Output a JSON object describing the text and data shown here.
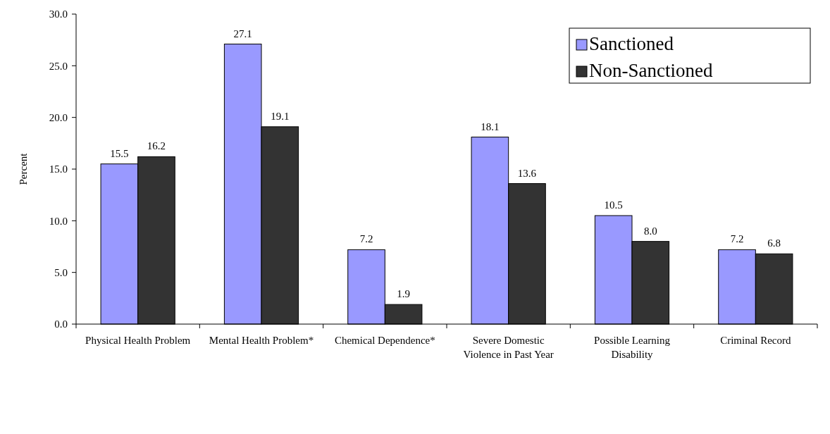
{
  "chart_data": {
    "type": "bar",
    "ylabel": "Percent",
    "categories": [
      "Physical Health Problem",
      "Mental Health Problem*",
      "Chemical Dependence*",
      "Severe Domestic Violence in Past Year",
      "Possible Learning Disability",
      "Criminal Record"
    ],
    "series": [
      {
        "name": "Sanctioned",
        "color": "#9999ff",
        "values": [
          15.5,
          27.1,
          7.2,
          18.1,
          10.5,
          7.2
        ]
      },
      {
        "name": "Non-Sanctioned",
        "color": "#333333",
        "values": [
          16.2,
          19.1,
          1.9,
          13.6,
          8.0,
          6.8
        ]
      }
    ],
    "ylim": [
      0,
      30
    ],
    "yticks": [
      {
        "value": 0,
        "label": "0.0"
      },
      {
        "value": 5,
        "label": "5.0"
      },
      {
        "value": 10,
        "label": "10.0"
      },
      {
        "value": 15,
        "label": "15.0"
      },
      {
        "value": 20,
        "label": "20.0"
      },
      {
        "value": 25,
        "label": "25.0"
      },
      {
        "value": 30,
        "label": "30.0"
      }
    ],
    "value_labels": [
      [
        "15.5",
        "27.1",
        "7.2",
        "18.1",
        "10.5",
        "7.2"
      ],
      [
        "16.2",
        "19.1",
        "1.9",
        "13.6",
        "8.0",
        "6.8"
      ]
    ],
    "grid": false,
    "legend": "top right"
  }
}
